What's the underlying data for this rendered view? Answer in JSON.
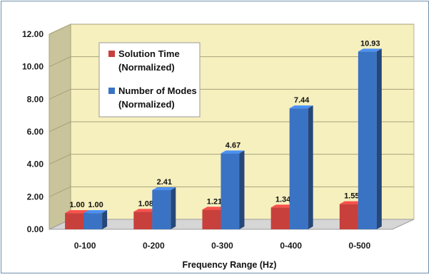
{
  "chart_data": {
    "type": "bar",
    "categories": [
      "0-100",
      "0-200",
      "0-300",
      "0-400",
      "0-500"
    ],
    "series": [
      {
        "name": "Solution Time (Normalized)",
        "color": "#c8403c",
        "values": [
          1.0,
          1.08,
          1.21,
          1.34,
          1.55
        ],
        "labels": [
          "1.00",
          "1.08",
          "1.21",
          "1.34",
          "1.55"
        ]
      },
      {
        "name": "Number of Modes (Normalized)",
        "color": "#3b73c4",
        "values": [
          1.0,
          2.41,
          4.67,
          7.44,
          10.93
        ],
        "labels": [
          "1.00",
          "2.41",
          "4.67",
          "7.44",
          "10.93"
        ]
      }
    ],
    "legend": {
      "position": "top-left",
      "entries": [
        {
          "line1": "Solution Time",
          "line2": "(Normalized)"
        },
        {
          "line1": "Number of Modes",
          "line2": "(Normalized)"
        }
      ]
    },
    "yticks": [
      "0.00",
      "2.00",
      "4.00",
      "6.00",
      "8.00",
      "10.00",
      "12.00"
    ],
    "ylim": [
      0,
      12
    ],
    "xlabel": "Frequency Range (Hz)",
    "ylabel": "",
    "title": "",
    "grid": true,
    "wall_color": "#f6efbe"
  }
}
